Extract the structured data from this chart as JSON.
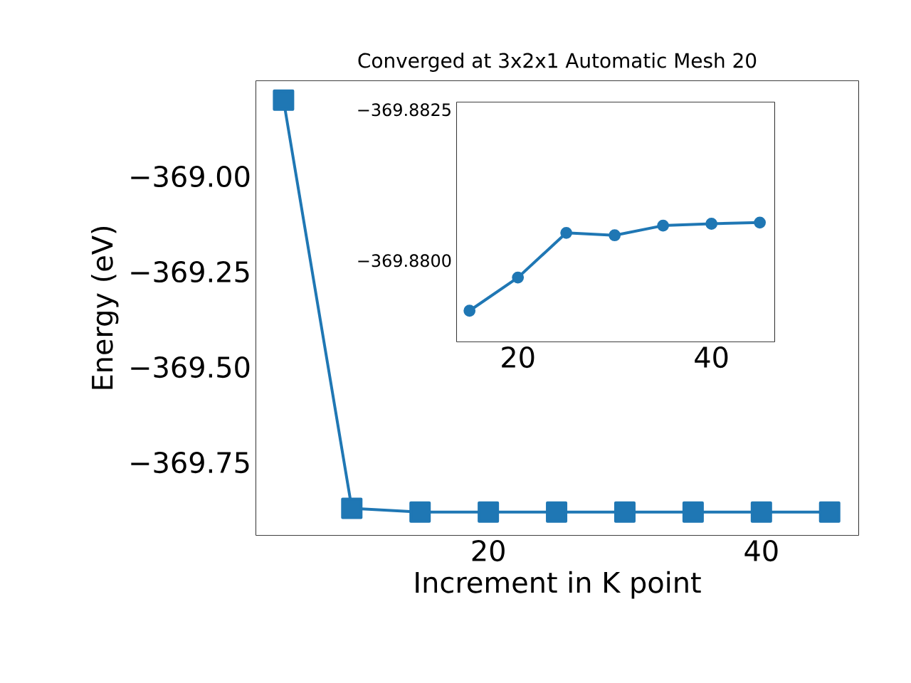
{
  "chart_data": [
    {
      "type": "line",
      "title": "Converged at 3x2x1 Automatic Mesh 20",
      "xlabel": "Increment in K point",
      "ylabel": "Energy (eV)",
      "color": "#1f77b4",
      "marker": "square",
      "line_style": "solid",
      "x": [
        5,
        10,
        15,
        20,
        25,
        30,
        35,
        40,
        45
      ],
      "values": [
        -368.8,
        -369.87,
        -369.88,
        -369.88,
        -369.88,
        -369.88,
        -369.88,
        -369.88,
        -369.88
      ],
      "xlim": [
        3.0,
        47.1
      ],
      "ylim": [
        -369.94,
        -368.75
      ],
      "xticks": [
        20,
        40
      ],
      "yticks": [
        {
          "value": -369.0,
          "label": "−369.00"
        },
        {
          "value": -369.25,
          "label": "−369.25"
        },
        {
          "value": -369.5,
          "label": "−369.50"
        },
        {
          "value": -369.75,
          "label": "−369.75"
        }
      ]
    },
    {
      "type": "line",
      "color": "#1f77b4",
      "marker": "circle",
      "line_style": "solid",
      "x": [
        15,
        20,
        25,
        30,
        35,
        40,
        45
      ],
      "values": [
        -369.87917,
        -369.87972,
        -369.88046,
        -369.88042,
        -369.88058,
        -369.88061,
        -369.88063
      ],
      "xlim": [
        13.7,
        46.5
      ],
      "ylim": [
        -369.87866,
        -369.88262
      ],
      "xticks": [
        20,
        40
      ],
      "yticks": [
        {
          "value": -369.8825,
          "label": "−369.8825"
        },
        {
          "value": -369.88,
          "label": "−369.8800"
        }
      ]
    }
  ]
}
